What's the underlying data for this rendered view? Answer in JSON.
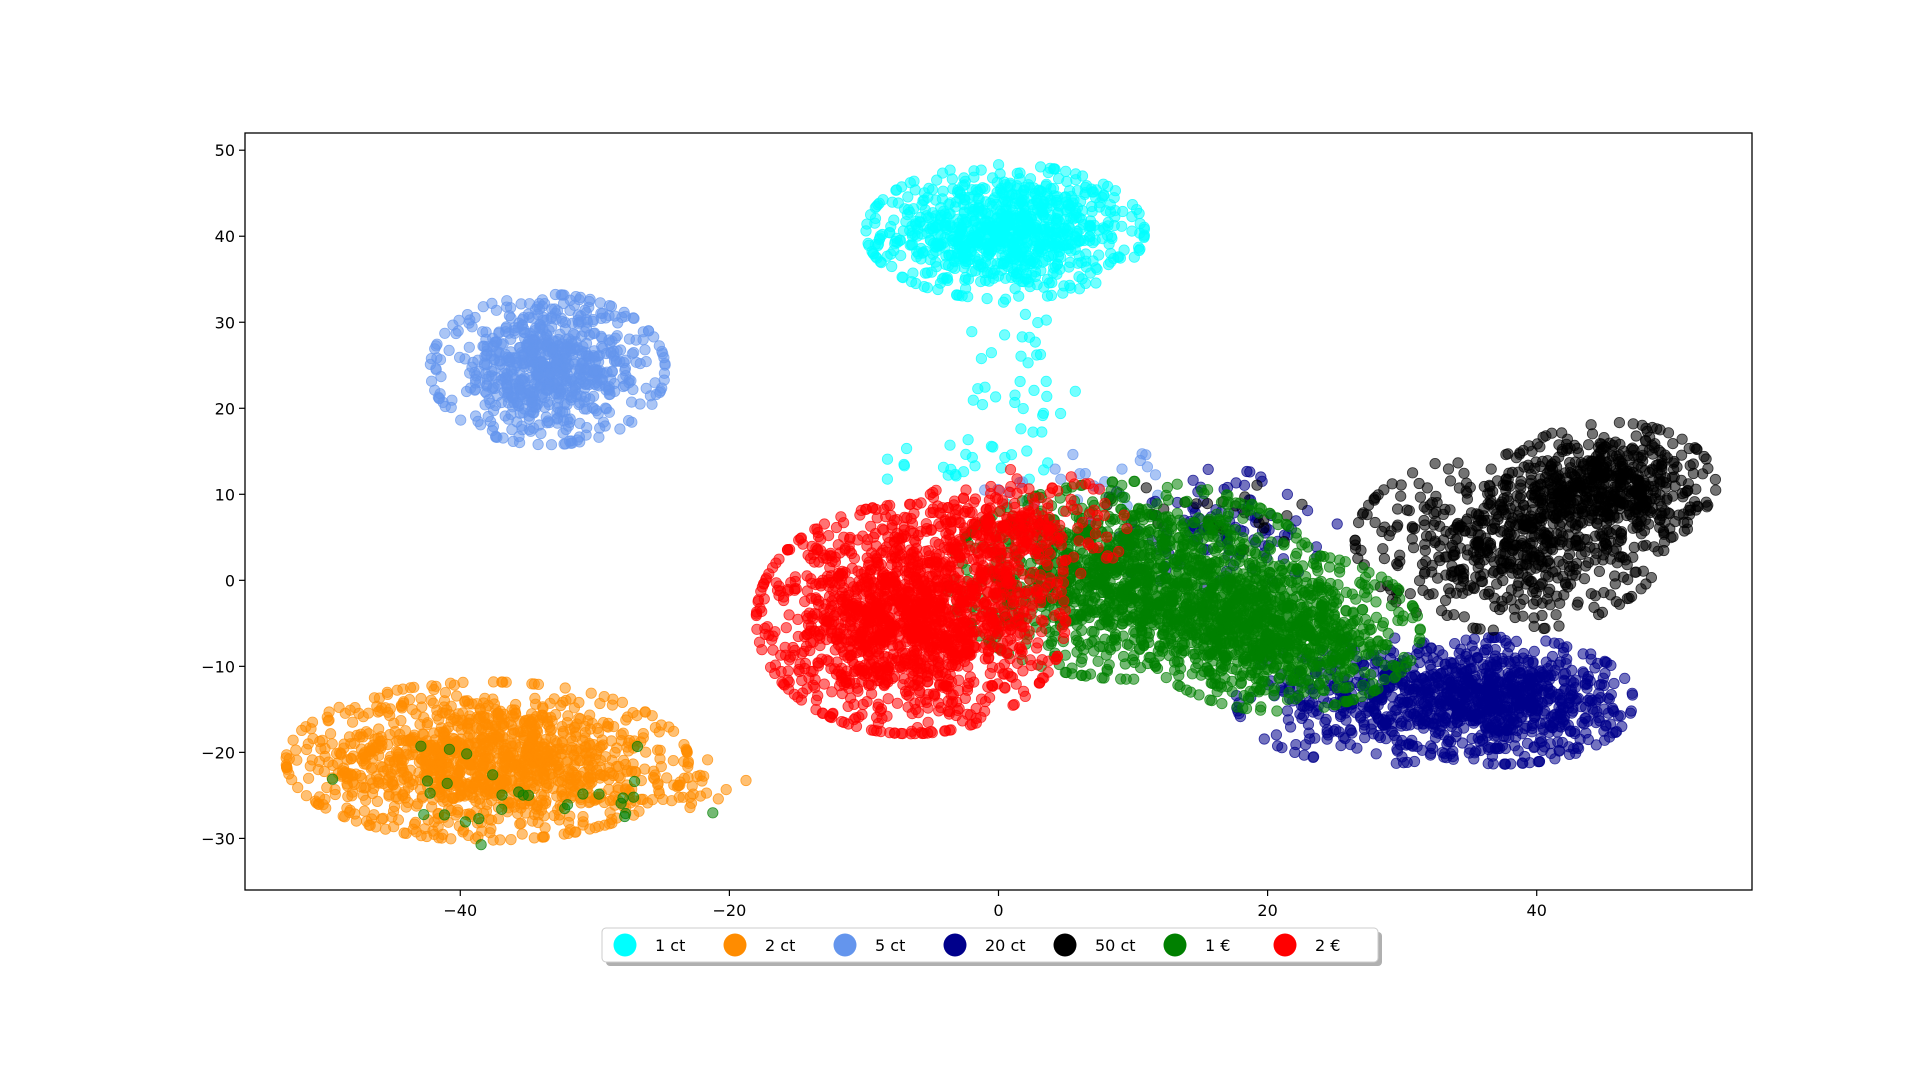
{
  "chart_data": {
    "type": "scatter",
    "title": "",
    "xlabel": "",
    "ylabel": "",
    "xlim": [
      -56,
      56
    ],
    "ylim": [
      -36,
      52
    ],
    "xticks": [
      -40,
      -20,
      0,
      20,
      40
    ],
    "yticks": [
      -30,
      -20,
      -10,
      0,
      10,
      20,
      30,
      40,
      50
    ],
    "xtick_labels": [
      "−40",
      "−20",
      "0",
      "20",
      "40"
    ],
    "ytick_labels": [
      "−30",
      "−20",
      "−10",
      "0",
      "10",
      "20",
      "30",
      "40",
      "50"
    ],
    "grid": false,
    "legend_position": "bottom-center",
    "marker_alpha": 0.55,
    "series": [
      {
        "name": "1 ct",
        "color": "#00ffff",
        "clusters": [
          {
            "cx": 0.5,
            "cy": 40.5,
            "sx": 4.5,
            "sy": 3.4,
            "n": 900
          },
          {
            "cx": 2.0,
            "cy": 22.0,
            "sx": 2.0,
            "sy": 6.0,
            "n": 40
          },
          {
            "cx": -3.0,
            "cy": 14.0,
            "sx": 3.0,
            "sy": 1.5,
            "n": 20
          }
        ]
      },
      {
        "name": "2 ct",
        "color": "#ff8c00",
        "clusters": [
          {
            "cx": -38.0,
            "cy": -21.0,
            "sx": 6.5,
            "sy": 4.0,
            "n": 1300
          },
          {
            "cx": -24.0,
            "cy": -24.0,
            "sx": 2.5,
            "sy": 1.5,
            "n": 40
          }
        ]
      },
      {
        "name": "5 ct",
        "color": "#6495ed",
        "clusters": [
          {
            "cx": -33.5,
            "cy": 24.5,
            "sx": 3.8,
            "sy": 3.8,
            "n": 750
          },
          {
            "cx": 7.0,
            "cy": 11.0,
            "sx": 4.0,
            "sy": 2.0,
            "n": 25
          }
        ]
      },
      {
        "name": "20 ct",
        "color": "#00008b",
        "clusters": [
          {
            "cx": 37.5,
            "cy": -14.0,
            "sx": 4.2,
            "sy": 3.2,
            "n": 800
          },
          {
            "cx": 28.0,
            "cy": -14.0,
            "sx": 4.5,
            "sy": 3.2,
            "n": 350
          },
          {
            "cx": 16.0,
            "cy": 6.0,
            "sx": 4.0,
            "sy": 3.0,
            "n": 120
          }
        ]
      },
      {
        "name": "50 ct",
        "color": "#000000",
        "clusters": [
          {
            "cx": 45.5,
            "cy": 11.0,
            "sx": 3.4,
            "sy": 3.2,
            "n": 550
          },
          {
            "cx": 38.0,
            "cy": 4.5,
            "sx": 5.0,
            "sy": 4.5,
            "n": 600
          },
          {
            "cx": 16.0,
            "cy": 8.0,
            "sx": 3.5,
            "sy": 2.0,
            "n": 25
          }
        ]
      },
      {
        "name": "1 €",
        "color": "#008000",
        "clusters": [
          {
            "cx": 10.0,
            "cy": 0.0,
            "sx": 6.0,
            "sy": 5.0,
            "n": 1300
          },
          {
            "cx": 21.0,
            "cy": -6.0,
            "sx": 4.5,
            "sy": 4.0,
            "n": 900
          },
          {
            "cx": -34.0,
            "cy": -25.0,
            "sx": 7.0,
            "sy": 3.0,
            "n": 30
          }
        ]
      },
      {
        "name": "2 €",
        "color": "#ff0000",
        "clusters": [
          {
            "cx": -6.5,
            "cy": -4.5,
            "sx": 5.0,
            "sy": 5.8,
            "n": 1600
          },
          {
            "cx": 1.5,
            "cy": 6.0,
            "sx": 3.5,
            "sy": 3.0,
            "n": 250
          }
        ]
      }
    ]
  }
}
